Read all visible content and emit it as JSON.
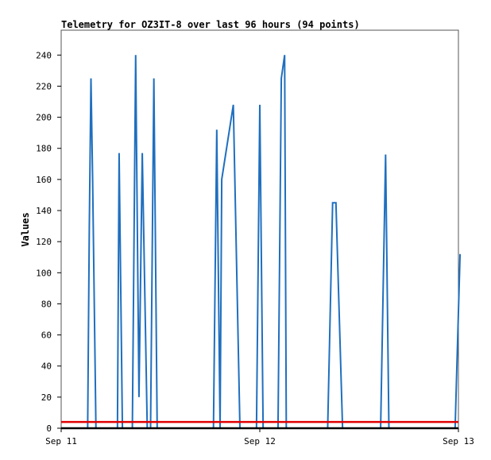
{
  "chart_data": {
    "type": "line",
    "title": "Telemetry for OZ3IT-8 over last 96 hours (94 points)",
    "xlabel": "",
    "ylabel": "Values",
    "xlim": [
      "Sep 11",
      "Sep 13"
    ],
    "ylim": [
      0,
      256
    ],
    "x_ticks": [
      "Sep 11",
      "Sep 12",
      "Sep 13"
    ],
    "y_ticks": [
      0,
      20,
      40,
      60,
      80,
      100,
      120,
      140,
      160,
      180,
      200,
      220,
      240
    ],
    "grid": false,
    "legend": "none",
    "series": [
      {
        "name": "",
        "color": "#1f6fbf",
        "points": [
          [
            "Sep 11 00:00",
            0
          ],
          [
            "Sep 11 03:12",
            0
          ],
          [
            "Sep 11 03:24",
            130
          ],
          [
            "Sep 11 03:36",
            225
          ],
          [
            "Sep 11 03:48",
            160
          ],
          [
            "Sep 11 04:12",
            0
          ],
          [
            "Sep 11 06:48",
            0
          ],
          [
            "Sep 11 07:00",
            177
          ],
          [
            "Sep 11 07:24",
            0
          ],
          [
            "Sep 11 08:36",
            0
          ],
          [
            "Sep 11 09:00",
            240
          ],
          [
            "Sep 11 09:24",
            20
          ],
          [
            "Sep 11 09:48",
            177
          ],
          [
            "Sep 11 10:24",
            0
          ],
          [
            "Sep 11 10:48",
            0
          ],
          [
            "Sep 11 11:12",
            225
          ],
          [
            "Sep 11 11:36",
            0
          ],
          [
            "Sep 11 18:24",
            0
          ],
          [
            "Sep 11 18:48",
            192
          ],
          [
            "Sep 11 19:12",
            0
          ],
          [
            "Sep 11 19:24",
            160
          ],
          [
            "Sep 11 20:48",
            208
          ],
          [
            "Sep 11 21:36",
            0
          ],
          [
            "Sep 11 23:36",
            0
          ],
          [
            "Sep 12 00:00",
            208
          ],
          [
            "Sep 12 00:24",
            0
          ],
          [
            "Sep 12 02:12",
            0
          ],
          [
            "Sep 12 02:36",
            225
          ],
          [
            "Sep 12 03:00",
            240
          ],
          [
            "Sep 12 03:12",
            0
          ],
          [
            "Sep 12 08:12",
            0
          ],
          [
            "Sep 12 08:48",
            145
          ],
          [
            "Sep 12 09:12",
            145
          ],
          [
            "Sep 12 10:00",
            0
          ],
          [
            "Sep 12 14:36",
            0
          ],
          [
            "Sep 12 15:12",
            176
          ],
          [
            "Sep 12 15:36",
            0
          ],
          [
            "Sep 12 23:36",
            0
          ],
          [
            "Sep 13 00:12",
            112
          ]
        ]
      },
      {
        "name": "",
        "color": "#e00000",
        "points": [
          [
            "Sep 11 00:00",
            4
          ],
          [
            "Sep 13 00:00",
            4
          ]
        ]
      },
      {
        "name": "",
        "color": "#000000",
        "points": [
          [
            "Sep 11 00:00",
            0
          ],
          [
            "Sep 13 00:00",
            0
          ]
        ]
      }
    ]
  }
}
